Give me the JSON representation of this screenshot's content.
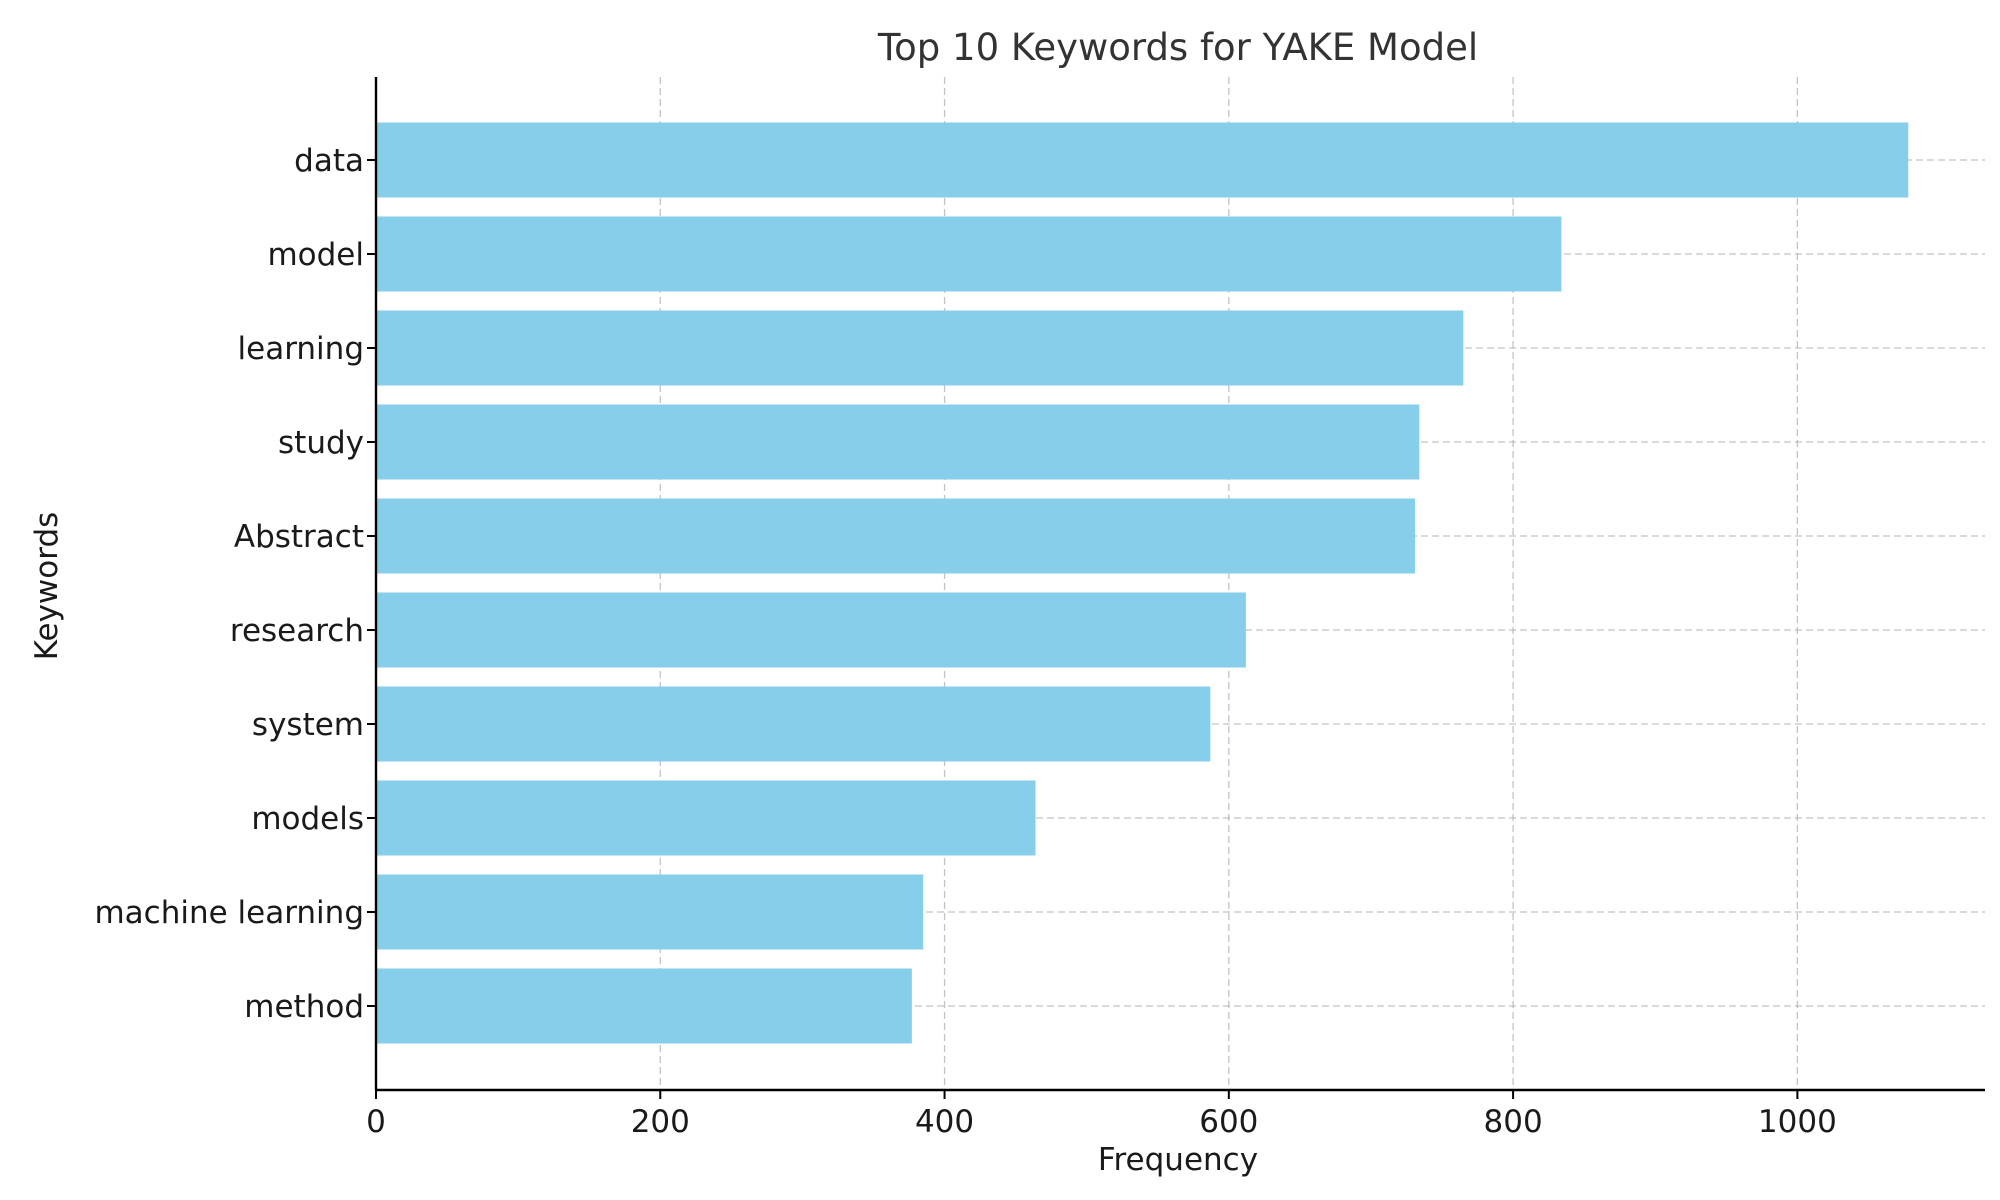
{
  "chart_data": {
    "type": "bar",
    "orientation": "horizontal",
    "title": "Top 10 Keywords for YAKE Model",
    "xlabel": "Frequency",
    "ylabel": "Keywords",
    "categories": [
      "data",
      "model",
      "learning",
      "study",
      "Abstract",
      "research",
      "system",
      "models",
      "machine learning",
      "method"
    ],
    "values": [
      1078,
      834,
      765,
      734,
      731,
      612,
      587,
      464,
      385,
      377
    ],
    "xlim": [
      0,
      1132
    ],
    "xticks": [
      0,
      200,
      400,
      600,
      800,
      1000
    ],
    "xtick_labels": [
      "0",
      "200",
      "400",
      "600",
      "800",
      "1000"
    ],
    "grid": true,
    "bar_color": "#87ceeb"
  }
}
